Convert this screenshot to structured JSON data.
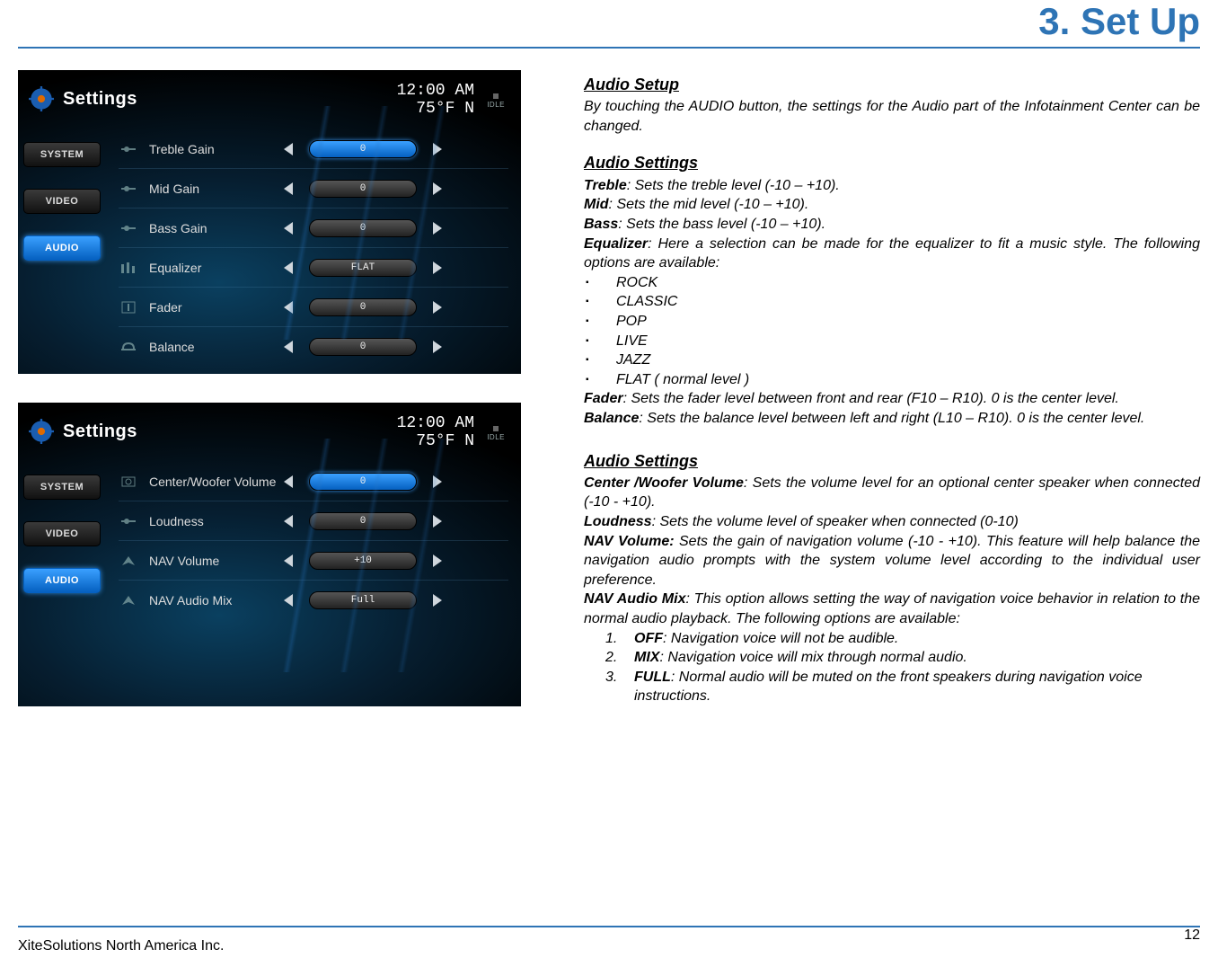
{
  "chapter_title": "3. Set Up",
  "footer": {
    "company": "XiteSolutions North America Inc.",
    "page": "12"
  },
  "colors": {
    "accent": "#2e74b5",
    "device_bg": "#000000",
    "active_blue": "#1c7fe0"
  },
  "device_common": {
    "title": "Settings",
    "time": "12:00 AM",
    "temp": "75°F  N",
    "idle": "IDLE",
    "sidebar": [
      {
        "label": "SYSTEM",
        "active": false
      },
      {
        "label": "VIDEO",
        "active": false
      },
      {
        "label": "AUDIO",
        "active": true
      }
    ]
  },
  "device1_rows": [
    {
      "icon": "slider",
      "label": "Treble Gain",
      "value": "0",
      "active": true
    },
    {
      "icon": "slider",
      "label": "Mid Gain",
      "value": "0",
      "active": false
    },
    {
      "icon": "slider",
      "label": "Bass Gain",
      "value": "0",
      "active": false
    },
    {
      "icon": "eq",
      "label": "Equalizer",
      "value": "FLAT",
      "active": false
    },
    {
      "icon": "fader",
      "label": "Fader",
      "value": "0",
      "active": false
    },
    {
      "icon": "balance",
      "label": "Balance",
      "value": "0",
      "active": false
    }
  ],
  "device2_rows": [
    {
      "icon": "speaker",
      "label": "Center/Woofer Volume",
      "value": "0",
      "active": true
    },
    {
      "icon": "slider",
      "label": "Loudness",
      "value": "0",
      "active": false
    },
    {
      "icon": "nav",
      "label": "NAV Volume",
      "value": "+10",
      "active": false
    },
    {
      "icon": "nav",
      "label": "NAV Audio Mix",
      "value": "Full",
      "active": false
    }
  ],
  "text": {
    "h_setup": "Audio Setup",
    "p_setup": "By touching the AUDIO button, the settings for the Audio part of the Infotainment Center can be changed.",
    "h_settings1": "Audio Settings",
    "treble_t": "Treble",
    "treble_d": ": Sets the treble level (-10 – +10).",
    "mid_t": "Mid",
    "mid_d": ": Sets the mid level (-10 – +10).",
    "bass_t": "Bass",
    "bass_d": ": Sets the bass level (-10 – +10).",
    "eq_t": "Equalizer",
    "eq_d": ": Here a selection can be made for the equalizer to fit a music style. The following options are available:",
    "eq_opts": [
      "ROCK",
      "CLASSIC",
      "POP",
      "LIVE",
      "JAZZ",
      "FLAT ( normal level )"
    ],
    "fader_t": "Fader",
    "fader_d": ": Sets the fader level between front and rear (F10 – R10). 0 is the center level.",
    "bal_t": "Balance",
    "bal_d": ": Sets the balance level between left and right (L10 – R10). 0 is the center level.",
    "h_settings2": "Audio Settings",
    "cw_t": "Center /Woofer Volume",
    "cw_d": ": Sets the volume level for an optional center speaker when connected (-10 - +10).",
    "loud_t": "Loudness",
    "loud_d": ": Sets the volume level of speaker when connected (0-10)",
    "navv_t": "NAV Volume:",
    "navv_d": " Sets the gain of navigation volume (-10 - +10).  This feature will help balance the navigation audio prompts with the system volume level according to the individual user preference.",
    "navm_t": "NAV Audio Mix",
    "navm_d": ": This option allows setting the way of navigation voice behavior in relation to the normal audio playback. The following options are available:",
    "navm_opts": [
      {
        "n": "1.",
        "opt": "OFF",
        "d": ": Navigation voice will not be audible."
      },
      {
        "n": "2.",
        "opt": "MIX",
        "d": ": Navigation voice will mix through normal audio."
      },
      {
        "n": "3.",
        "opt": "FULL",
        "d": ": Normal audio will be muted on the front speakers during navigation voice instructions."
      }
    ]
  }
}
